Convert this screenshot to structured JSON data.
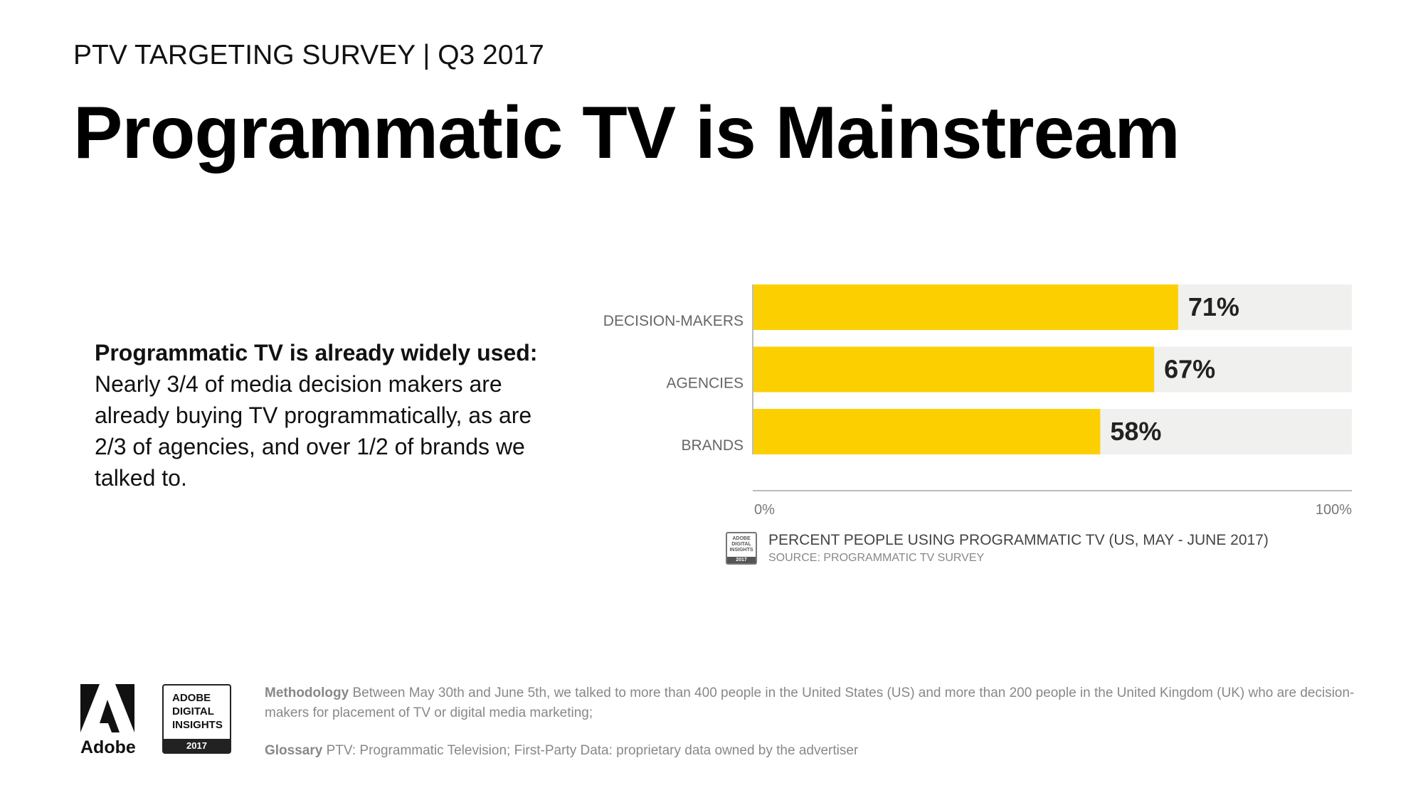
{
  "header": {
    "survey_label": "PTV TARGETING SURVEY | Q3 2017",
    "title": "Programmatic TV is Mainstream"
  },
  "summary": {
    "lead": "Programmatic TV is already widely used:",
    "body": "Nearly 3/4 of media decision makers are already buying TV programmatically, as are 2/3 of agencies, and over 1/2 of brands we talked to."
  },
  "chart_data": {
    "type": "bar",
    "orientation": "horizontal",
    "categories": [
      "DECISION-MAKERS",
      "AGENCIES",
      "BRANDS"
    ],
    "values": [
      71,
      67,
      58
    ],
    "value_labels": [
      "71%",
      "67%",
      "58%"
    ],
    "xlim": [
      0,
      100
    ],
    "x_ticks": [
      "0%",
      "100%"
    ],
    "title": "PERCENT PEOPLE USING PROGRAMMATIC TV (US, MAY - JUNE 2017)",
    "source": "SOURCE: PROGRAMMATIC TV SURVEY",
    "grid": false,
    "colors": {
      "bar": "#FCD000",
      "track": "#F0F0EF",
      "axis": "#BBBBBB"
    }
  },
  "caption_icon": {
    "line1": "ADOBE",
    "line2": "DIGITAL",
    "line3": "INSIGHTS",
    "year": "2017"
  },
  "footer": {
    "brand": "Adobe",
    "badge_line1": "ADOBE",
    "badge_line2": "DIGITAL",
    "badge_line3": "INSIGHTS",
    "badge_year": "2017",
    "methodology_label": "Methodology",
    "methodology_text": "Between May 30th and June 5th, we talked to more than 400 people in the United States (US) and more than 200 people in the United Kingdom (UK) who are decision-makers for placement of TV or digital media marketing;",
    "glossary_label": "Glossary",
    "glossary_text": "PTV: Programmatic Television; First-Party Data: proprietary data owned by the advertiser"
  }
}
